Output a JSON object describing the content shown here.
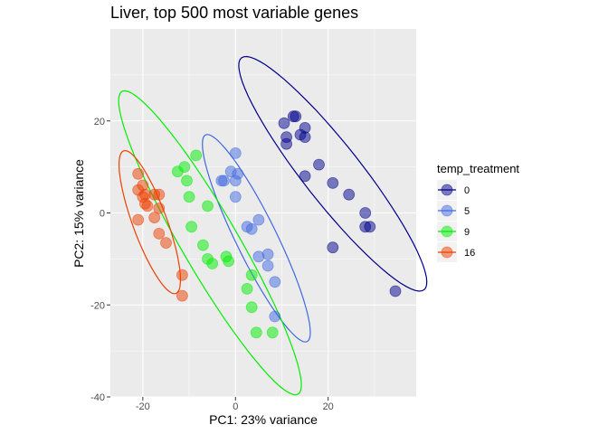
{
  "chart_data": {
    "type": "scatter",
    "title": "Liver, top 500 most variable genes",
    "xlabel": "PC1: 23% variance",
    "ylabel": "PC2: 15% variance",
    "xlim": [
      -27,
      39
    ],
    "ylim": [
      -40,
      40
    ],
    "x_ticks": [
      -20,
      0,
      20
    ],
    "y_ticks": [
      -40,
      -20,
      0,
      20
    ],
    "x_tick_labels": [
      "-20",
      "0",
      "20"
    ],
    "y_tick_labels": [
      "-40",
      "-20",
      "0",
      "20"
    ],
    "grid": true,
    "legend": {
      "title": "temp_treatment",
      "position": "right"
    },
    "series": [
      {
        "name": "0",
        "color": "#00008B",
        "ellipse": {
          "cx": 21,
          "cy": 8.5,
          "rx": 32,
          "ry": 6.2,
          "angle_deg": -52
        },
        "points": [
          [
            10.5,
            19.5
          ],
          [
            12.5,
            21
          ],
          [
            13,
            21
          ],
          [
            15,
            18.5
          ],
          [
            11,
            16.5
          ],
          [
            14,
            17
          ],
          [
            15,
            16.5
          ],
          [
            11,
            15
          ],
          [
            15,
            8
          ],
          [
            18,
            10.5
          ],
          [
            21,
            6.5
          ],
          [
            24.5,
            4
          ],
          [
            28,
            0
          ],
          [
            28,
            -3
          ],
          [
            29,
            -3
          ],
          [
            21,
            -7.5
          ],
          [
            34.5,
            -17
          ]
        ]
      },
      {
        "name": "5",
        "color": "#4169E1",
        "ellipse": {
          "cx": 4.5,
          "cy": -5.5,
          "rx": 25,
          "ry": 4.4,
          "angle_deg": -64
        },
        "points": [
          [
            0,
            13
          ],
          [
            -1,
            9
          ],
          [
            0.5,
            8.5
          ],
          [
            -2.5,
            7
          ],
          [
            -3,
            7
          ],
          [
            0,
            7
          ],
          [
            0,
            3.5
          ],
          [
            2.5,
            -3
          ],
          [
            3.5,
            -3.5
          ],
          [
            5,
            -1.5
          ],
          [
            5,
            -9.5
          ],
          [
            7,
            -9
          ],
          [
            7,
            -11.5
          ],
          [
            8.5,
            -15
          ],
          [
            8.5,
            -22.5
          ]
        ]
      },
      {
        "name": "9",
        "color": "#00EE00",
        "ellipse": {
          "cx": -5.5,
          "cy": -6.5,
          "rx": 38,
          "ry": 6.1,
          "angle_deg": -60
        },
        "points": [
          [
            -8.5,
            12.5
          ],
          [
            -11,
            10
          ],
          [
            -12.5,
            9
          ],
          [
            -10.5,
            7
          ],
          [
            -10,
            3.5
          ],
          [
            -6,
            1.5
          ],
          [
            -9.5,
            -3
          ],
          [
            -7,
            -7
          ],
          [
            -6,
            -10
          ],
          [
            -5,
            -11
          ],
          [
            -2,
            -9.5
          ],
          [
            -1.5,
            -10.5
          ],
          [
            3.5,
            -13.5
          ],
          [
            2.5,
            -16.5
          ],
          [
            3.5,
            -20.5
          ],
          [
            4.5,
            -26
          ],
          [
            8,
            -26
          ]
        ]
      },
      {
        "name": "16",
        "color": "#EE4000",
        "ellipse": {
          "cx": -18.5,
          "cy": -2,
          "rx": 16.5,
          "ry": 3.7,
          "angle_deg": -70
        },
        "points": [
          [
            -21,
            8.5
          ],
          [
            -20,
            6
          ],
          [
            -21,
            5
          ],
          [
            -19.5,
            4
          ],
          [
            -20,
            3.5
          ],
          [
            -17.5,
            4
          ],
          [
            -16.5,
            4
          ],
          [
            -19.5,
            2
          ],
          [
            -19,
            1.5
          ],
          [
            -16.5,
            1
          ],
          [
            -17.5,
            -1
          ],
          [
            -21,
            -1.5
          ],
          [
            -16.5,
            -4.5
          ],
          [
            -15,
            -6.5
          ],
          [
            -11.5,
            -13.5
          ],
          [
            -11.5,
            -18
          ]
        ]
      }
    ]
  }
}
